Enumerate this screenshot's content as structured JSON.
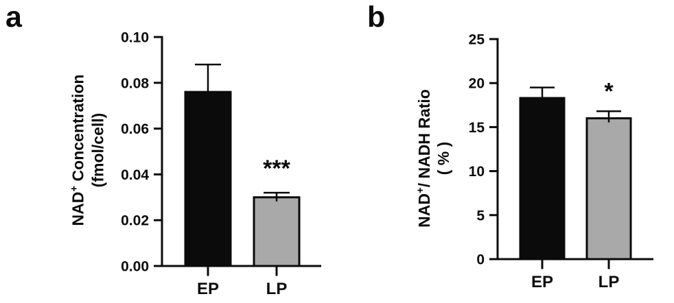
{
  "panels": [
    {
      "label": "a"
    },
    {
      "label": "b"
    }
  ],
  "chart_data": [
    {
      "type": "bar",
      "panel": "a",
      "title": "",
      "xlabel": "",
      "ylabel": "NAD+ Concentration (fmol/cell)",
      "ylabel_lines": [
        {
          "pre": "NAD",
          "sup": "+",
          "post": " Concentration"
        },
        {
          "pre": "(fmol/cell)",
          "sup": "",
          "post": ""
        }
      ],
      "categories": [
        "EP",
        "LP"
      ],
      "values": [
        0.076,
        0.03
      ],
      "errors_upper": [
        0.012,
        0.002
      ],
      "significance": [
        "",
        "***"
      ],
      "bar_colors": [
        "#0b0b0b",
        "#a9a9a9"
      ],
      "bar_edge_color": "#0b0b0b",
      "axis_color": "#0b0b0b",
      "ylim": [
        0,
        0.1
      ],
      "ytick_labels": [
        "0.00",
        "0.02",
        "0.04",
        "0.06",
        "0.08",
        "0.10"
      ],
      "grid": false,
      "legend": "none"
    },
    {
      "type": "bar",
      "panel": "b",
      "title": "",
      "xlabel": "",
      "ylabel": "NAD+/ NADH Ratio ( % )",
      "ylabel_lines": [
        {
          "pre": "NAD",
          "sup": "+",
          "post": "/ NADH Ratio"
        },
        {
          "pre": "( % )",
          "sup": "",
          "post": ""
        }
      ],
      "categories": [
        "EP",
        "LP"
      ],
      "values": [
        18.3,
        16.0
      ],
      "errors_upper": [
        1.2,
        0.8
      ],
      "significance": [
        "",
        "*"
      ],
      "bar_colors": [
        "#0b0b0b",
        "#a9a9a9"
      ],
      "bar_edge_color": "#0b0b0b",
      "axis_color": "#0b0b0b",
      "ylim": [
        0,
        25
      ],
      "ytick_labels": [
        "0",
        "5",
        "10",
        "15",
        "20",
        "25"
      ],
      "grid": false,
      "legend": "none"
    }
  ]
}
